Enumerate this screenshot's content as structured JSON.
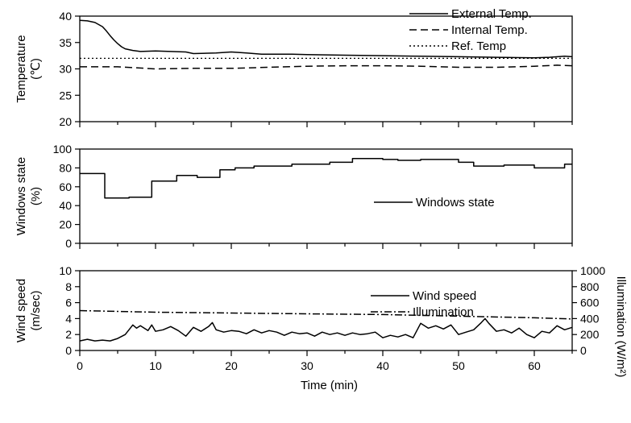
{
  "chart_data": [
    {
      "type": "line",
      "ylabel_lines": [
        "Temperature",
        "(℃)"
      ],
      "ylim": [
        20,
        40
      ],
      "yticks": [
        20,
        25,
        30,
        35,
        40
      ],
      "xlim": [
        0,
        65
      ],
      "legend_position": "top-right",
      "series": [
        {
          "name": "External Temp.",
          "style": "solid",
          "x": [
            0,
            1,
            2,
            3,
            3.5,
            4,
            4.5,
            5,
            5.5,
            6,
            7,
            8,
            10,
            12,
            14,
            15,
            18,
            20,
            22,
            24,
            26,
            28,
            30,
            35,
            40,
            45,
            50,
            55,
            60,
            62,
            64,
            65
          ],
          "y": [
            39.2,
            39.1,
            38.8,
            38.0,
            37.2,
            36.3,
            35.5,
            34.8,
            34.2,
            33.8,
            33.5,
            33.3,
            33.4,
            33.3,
            33.2,
            32.9,
            33.0,
            33.2,
            33.0,
            32.8,
            32.8,
            32.8,
            32.7,
            32.6,
            32.5,
            32.4,
            32.3,
            32.2,
            32.1,
            32.2,
            32.4,
            32.3
          ]
        },
        {
          "name": "Internal Temp.",
          "style": "dashed",
          "x": [
            0,
            5,
            10,
            15,
            20,
            25,
            30,
            35,
            40,
            45,
            50,
            55,
            60,
            63,
            65
          ],
          "y": [
            30.4,
            30.4,
            30.0,
            30.1,
            30.1,
            30.3,
            30.5,
            30.6,
            30.6,
            30.5,
            30.3,
            30.3,
            30.5,
            30.7,
            30.6
          ]
        },
        {
          "name": "Ref. Temp",
          "style": "dotted",
          "x": [
            0,
            65
          ],
          "y": [
            32,
            32
          ]
        }
      ]
    },
    {
      "type": "line",
      "ylabel_lines": [
        "Windows state",
        "(%)"
      ],
      "ylim": [
        0,
        100
      ],
      "yticks": [
        0,
        20,
        40,
        60,
        80,
        100
      ],
      "xlim": [
        0,
        65
      ],
      "legend_position": "middle-right",
      "series": [
        {
          "name": "Windows state",
          "style": "step",
          "x": [
            0,
            3.3,
            3.3,
            6.5,
            6.5,
            9.5,
            9.5,
            12.8,
            12.8,
            15.5,
            15.5,
            18.5,
            18.5,
            20.5,
            20.5,
            23,
            23,
            28,
            28,
            33,
            33,
            36,
            36,
            40,
            40,
            42,
            42,
            45,
            45,
            50,
            50,
            52,
            52,
            56,
            56,
            60,
            60,
            64,
            64,
            65
          ],
          "y": [
            74,
            74,
            48,
            48,
            49,
            49,
            66,
            66,
            72,
            72,
            70,
            70,
            78,
            78,
            80,
            80,
            82,
            82,
            84,
            84,
            86,
            86,
            90,
            90,
            89,
            89,
            88,
            88,
            89,
            89,
            86,
            86,
            82,
            82,
            83,
            83,
            80,
            80,
            84,
            84
          ]
        }
      ]
    },
    {
      "type": "line",
      "ylabel_lines": [
        "Wind speed",
        "(m/sec)"
      ],
      "y2label": "Illumination (W/m²)",
      "ylim": [
        0,
        10
      ],
      "yticks": [
        0,
        2,
        4,
        6,
        8,
        10
      ],
      "y2lim": [
        0,
        1000
      ],
      "y2ticks": [
        0,
        200,
        400,
        600,
        800,
        1000
      ],
      "xlim": [
        0,
        65
      ],
      "xticks": [
        0,
        10,
        20,
        30,
        40,
        50,
        60
      ],
      "xlabel": "Time (min)",
      "legend_position": "middle-right",
      "series": [
        {
          "name": "Wind speed",
          "style": "solid",
          "axis": "left",
          "x": [
            0,
            1,
            2,
            3,
            4,
            5,
            6,
            7,
            7.5,
            8,
            9,
            9.5,
            10,
            11,
            12,
            13,
            14,
            15,
            16,
            17,
            17.5,
            18,
            19,
            20,
            21,
            22,
            23,
            24,
            25,
            26,
            27,
            28,
            29,
            30,
            31,
            32,
            33,
            34,
            35,
            36,
            37,
            38,
            39,
            40,
            41,
            42,
            43,
            44,
            45,
            46,
            47,
            48,
            49,
            50,
            51,
            52,
            53,
            53.5,
            54,
            55,
            56,
            57,
            58,
            59,
            60,
            61,
            62,
            63,
            64,
            65
          ],
          "y": [
            1.2,
            1.4,
            1.2,
            1.3,
            1.2,
            1.5,
            2.0,
            3.2,
            2.8,
            3.1,
            2.5,
            3.2,
            2.4,
            2.6,
            3.0,
            2.5,
            1.8,
            2.9,
            2.4,
            3.0,
            3.5,
            2.6,
            2.3,
            2.5,
            2.4,
            2.1,
            2.6,
            2.2,
            2.5,
            2.3,
            1.9,
            2.3,
            2.1,
            2.2,
            1.8,
            2.3,
            2.0,
            2.2,
            1.9,
            2.2,
            2.0,
            2.1,
            2.3,
            1.6,
            1.9,
            1.7,
            2.0,
            1.6,
            3.4,
            2.8,
            3.1,
            2.7,
            3.2,
            2.0,
            2.3,
            2.6,
            3.5,
            4.0,
            3.4,
            2.4,
            2.6,
            2.2,
            2.8,
            2.0,
            1.6,
            2.4,
            2.2,
            3.1,
            2.6,
            2.9
          ]
        },
        {
          "name": "Illumination",
          "style": "dashdot",
          "axis": "right",
          "x": [
            0,
            10,
            20,
            30,
            40,
            50,
            60,
            65
          ],
          "y": [
            500,
            480,
            470,
            460,
            450,
            430,
            410,
            395
          ]
        }
      ]
    }
  ]
}
